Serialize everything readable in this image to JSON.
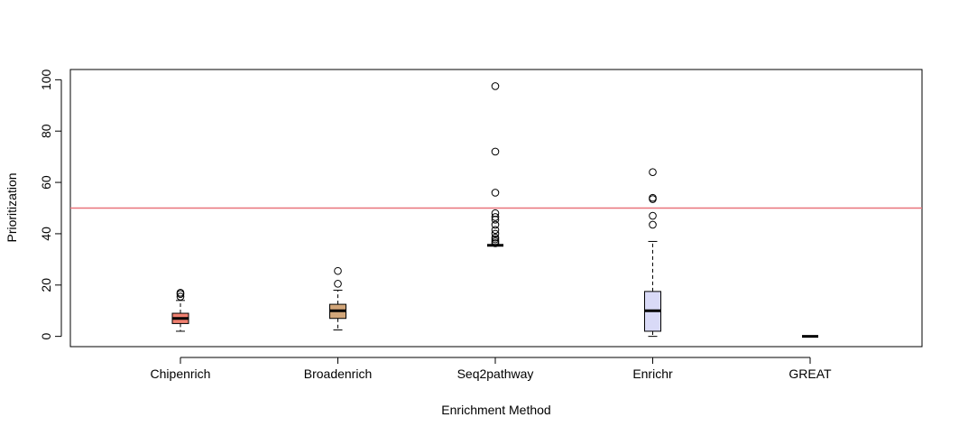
{
  "chart_data": {
    "type": "boxplot",
    "xlabel": "Enrichment Method",
    "ylabel": "Prioritization",
    "ylim": [
      -4,
      104
    ],
    "yticks": [
      0,
      20,
      40,
      60,
      80,
      100
    ],
    "reference_line": {
      "y": 50,
      "color": "#e8737b"
    },
    "categories": [
      "Chipenrich",
      "Broadenrich",
      "Seq2pathway",
      "Enrichr",
      "GREAT"
    ],
    "boxes": [
      {
        "category": "Chipenrich",
        "color": "#f08070",
        "whisker_low": 2,
        "q1": 5,
        "median": 7,
        "q3": 9,
        "whisker_high": 14,
        "outliers": [
          15.5,
          16.5,
          17
        ]
      },
      {
        "category": "Broadenrich",
        "color": "#d2a679",
        "whisker_low": 2.5,
        "q1": 7,
        "median": 10,
        "q3": 12.5,
        "whisker_high": 18,
        "outliers": [
          20.5,
          25.5
        ]
      },
      {
        "category": "Seq2pathway",
        "color": "#ffffff",
        "whisker_low": 35.5,
        "q1": 35.5,
        "median": 35.5,
        "q3": 35.5,
        "whisker_high": 35.5,
        "outliers": [
          36.3,
          37,
          37.8,
          38.5,
          40,
          41.5,
          43.5,
          45.5,
          46.5,
          48,
          56,
          72,
          97.5
        ]
      },
      {
        "category": "Enrichr",
        "color": "#d9daf7",
        "whisker_low": 0,
        "q1": 2,
        "median": 10,
        "q3": 17.5,
        "whisker_high": 37,
        "outliers": [
          43.5,
          47,
          53.5,
          54,
          64
        ]
      },
      {
        "category": "GREAT",
        "color": "#ffffff",
        "whisker_low": 0,
        "q1": 0,
        "median": 0,
        "q3": 0,
        "whisker_high": 0,
        "outliers": []
      }
    ]
  }
}
